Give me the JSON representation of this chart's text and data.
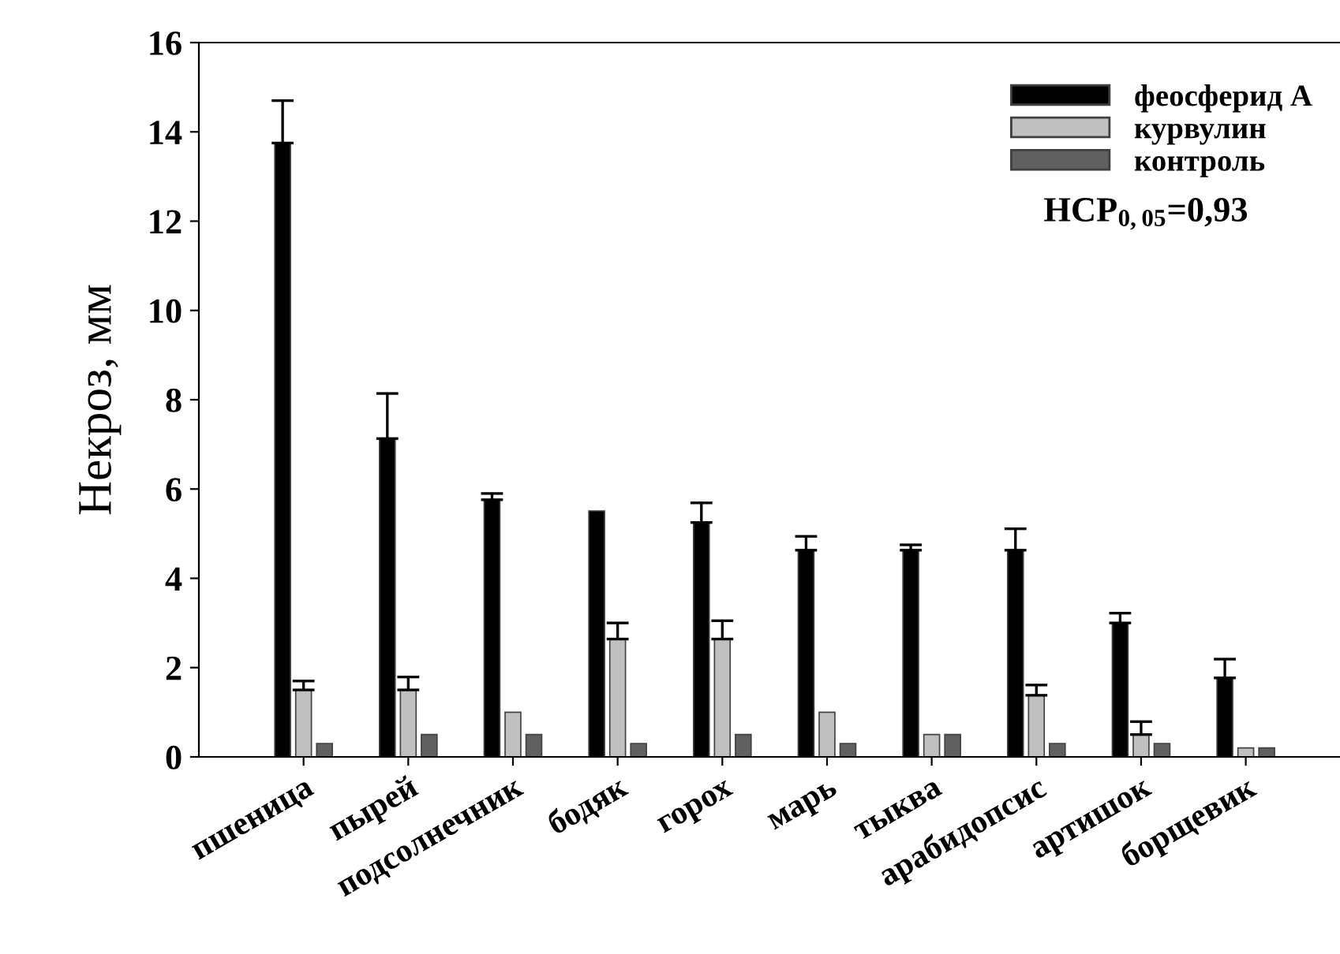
{
  "chart_data": {
    "type": "bar",
    "ylabel": "Некроз, мм",
    "categories": [
      "пшеница",
      "пырей",
      "подсолнечник",
      "бодяк",
      "горох",
      "марь",
      "тыква",
      "арабидопсис",
      "артишок",
      "борщевик"
    ],
    "series": [
      {
        "name": "феосферид А",
        "color": "#000000",
        "values": [
          13.75,
          7.13,
          5.76,
          5.51,
          5.25,
          4.63,
          4.63,
          4.63,
          3.0,
          1.77
        ],
        "errors": [
          [
            13.75,
            14.7
          ],
          [
            7.13,
            8.14
          ],
          [
            5.76,
            5.9
          ],
          null,
          [
            5.25,
            5.69
          ],
          [
            4.63,
            4.94
          ],
          [
            4.63,
            4.75
          ],
          [
            4.63,
            5.11
          ],
          [
            3.0,
            3.22
          ],
          [
            1.77,
            2.19
          ]
        ]
      },
      {
        "name": "курвулин",
        "color": "#c0c0c0",
        "values": [
          1.5,
          1.5,
          1.0,
          2.64,
          2.64,
          1.0,
          0.5,
          1.38,
          0.5,
          0.2
        ],
        "errors": [
          [
            1.5,
            1.7
          ],
          [
            1.5,
            1.79
          ],
          null,
          [
            2.64,
            3.0
          ],
          [
            2.64,
            3.05
          ],
          null,
          null,
          [
            1.38,
            1.61
          ],
          [
            0.5,
            0.79
          ],
          null
        ]
      },
      {
        "name": "контроль",
        "color": "#606060",
        "values": [
          0.3,
          0.5,
          0.5,
          0.3,
          0.5,
          0.3,
          0.5,
          0.3,
          0.3,
          0.2
        ]
      }
    ],
    "ylim": [
      0,
      16
    ],
    "yticks": [
      0,
      2,
      4,
      6,
      8,
      10,
      12,
      14,
      16
    ],
    "legend": "top right",
    "annotations": [
      "НСР$_{0,05}$=0,93"
    ]
  }
}
